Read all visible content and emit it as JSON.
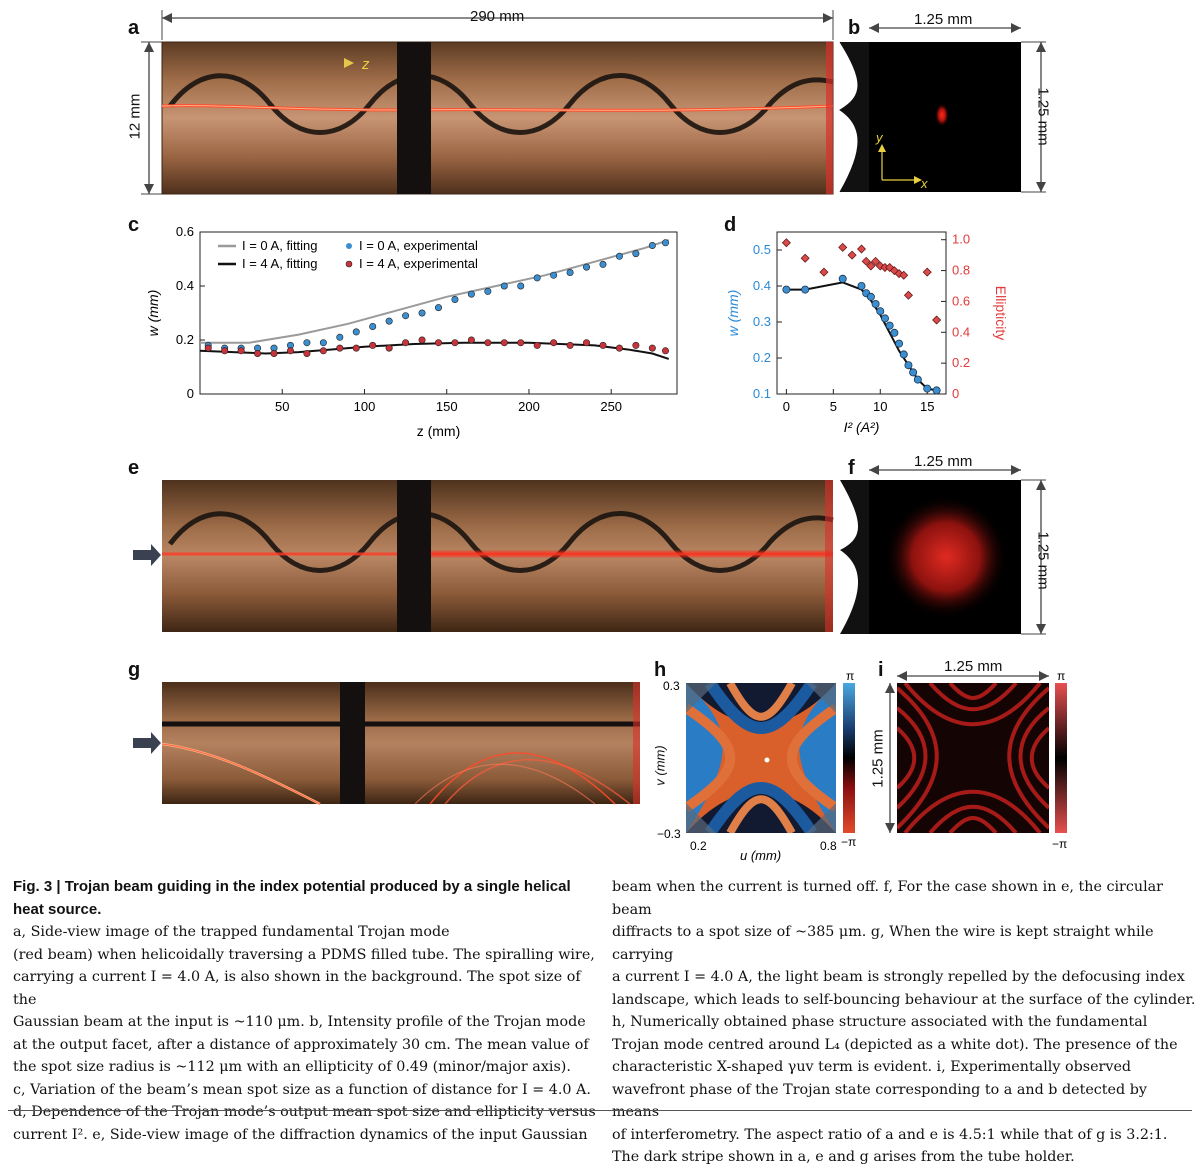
{
  "panels": {
    "a": {
      "label": "a",
      "width_label": "290 mm",
      "height_label": "12 mm",
      "axis": "z"
    },
    "b": {
      "label": "b",
      "width_label": "1.25 mm",
      "height_label": "1.25 mm",
      "axis_x": "x",
      "axis_y": "y"
    },
    "c": {
      "label": "c"
    },
    "d": {
      "label": "d"
    },
    "e": {
      "label": "e"
    },
    "f": {
      "label": "f",
      "width_label": "1.25 mm",
      "height_label": "1.25 mm"
    },
    "g": {
      "label": "g"
    },
    "h": {
      "label": "h",
      "ylabel": "v (mm)",
      "xlabel": "u (mm)",
      "y_top": "0.3",
      "y_bottom": "−0.3",
      "x_left": "0.2",
      "x_right": "0.8",
      "cbar_top": "π",
      "cbar_bottom": "−π"
    },
    "i": {
      "label": "i",
      "width_label": "1.25 mm",
      "height_label": "1.25 mm",
      "cbar_top": "π",
      "cbar_bottom": "−π"
    }
  },
  "chart_data": [
    {
      "type": "scatter",
      "panel": "c",
      "xlabel": "z (mm)",
      "ylabel": "w (mm)",
      "xlim": [
        0,
        290
      ],
      "ylim": [
        0,
        0.6
      ],
      "xticks": [
        "50",
        "100",
        "150",
        "200",
        "250"
      ],
      "yticks": [
        "0",
        "0.2",
        "0.4",
        "0.6"
      ],
      "legend_position": "top-left",
      "legend": [
        "I = 0 A, fitting",
        "I = 4 A, fitting",
        "I = 0 A, experimental",
        "I = 4 A, experimental"
      ],
      "series": [
        {
          "name": "I = 0 A, fitting",
          "style": "line",
          "color": "#9a9a9a",
          "x": [
            0,
            30,
            60,
            90,
            120,
            150,
            180,
            210,
            240,
            270,
            285
          ],
          "y": [
            0.19,
            0.19,
            0.22,
            0.26,
            0.31,
            0.36,
            0.4,
            0.44,
            0.49,
            0.54,
            0.57
          ]
        },
        {
          "name": "I = 4 A, fitting",
          "style": "line",
          "color": "#111111",
          "x": [
            0,
            20,
            40,
            60,
            80,
            100,
            130,
            160,
            200,
            240,
            260,
            275,
            285
          ],
          "y": [
            0.16,
            0.155,
            0.15,
            0.155,
            0.165,
            0.175,
            0.185,
            0.19,
            0.19,
            0.18,
            0.165,
            0.15,
            0.13
          ]
        },
        {
          "name": "I = 0 A, experimental",
          "style": "points",
          "color": "#3b8fd0",
          "x": [
            5,
            15,
            25,
            35,
            45,
            55,
            65,
            75,
            85,
            95,
            105,
            115,
            125,
            135,
            145,
            155,
            165,
            175,
            185,
            195,
            205,
            215,
            225,
            235,
            245,
            255,
            265,
            275,
            283
          ],
          "y": [
            0.18,
            0.17,
            0.17,
            0.17,
            0.17,
            0.18,
            0.19,
            0.19,
            0.21,
            0.23,
            0.25,
            0.27,
            0.29,
            0.3,
            0.32,
            0.35,
            0.37,
            0.38,
            0.4,
            0.4,
            0.43,
            0.44,
            0.45,
            0.47,
            0.48,
            0.51,
            0.52,
            0.55,
            0.56
          ]
        },
        {
          "name": "I = 4 A, experimental",
          "style": "points",
          "color": "#c8343a",
          "x": [
            5,
            15,
            25,
            35,
            45,
            55,
            65,
            75,
            85,
            95,
            105,
            115,
            125,
            135,
            145,
            155,
            165,
            175,
            185,
            195,
            205,
            215,
            225,
            235,
            245,
            255,
            265,
            275,
            283
          ],
          "y": [
            0.17,
            0.16,
            0.16,
            0.15,
            0.15,
            0.16,
            0.15,
            0.16,
            0.17,
            0.17,
            0.18,
            0.17,
            0.19,
            0.2,
            0.19,
            0.19,
            0.2,
            0.19,
            0.19,
            0.19,
            0.18,
            0.19,
            0.18,
            0.19,
            0.18,
            0.17,
            0.18,
            0.17,
            0.16
          ]
        }
      ]
    },
    {
      "type": "scatter",
      "panel": "d",
      "xlabel": "I² (A²)",
      "ylabel": "w (mm)",
      "ylabel_right": "Ellipticity",
      "xlim": [
        -1,
        17
      ],
      "ylim": [
        0.1,
        0.55
      ],
      "ylim_right": [
        0,
        1.05
      ],
      "xticks": [
        "0",
        "5",
        "10",
        "15"
      ],
      "yticks": [
        "0.1",
        "0.2",
        "0.3",
        "0.4",
        "0.5"
      ],
      "yticks_right": [
        "0",
        "0.2",
        "0.4",
        "0.6",
        "0.8",
        "1.0"
      ],
      "colors": {
        "left_axis": "#2a8ad8",
        "right_axis": "#e23b3b"
      },
      "series": [
        {
          "name": "w fit",
          "style": "line",
          "axis": "left",
          "color": "#111111",
          "x": [
            0,
            2,
            4,
            6,
            8,
            9,
            10,
            11,
            12,
            13,
            14,
            15,
            16
          ],
          "y": [
            0.39,
            0.39,
            0.4,
            0.41,
            0.39,
            0.36,
            0.32,
            0.27,
            0.22,
            0.18,
            0.14,
            0.115,
            0.11
          ]
        },
        {
          "name": "w",
          "style": "points",
          "axis": "left",
          "color": "#3b8fd0",
          "x": [
            0,
            2,
            6,
            8,
            8.5,
            9,
            9.5,
            10,
            10.5,
            11,
            11.5,
            12,
            12.5,
            13,
            13.5,
            14,
            15,
            16
          ],
          "y": [
            0.39,
            0.39,
            0.42,
            0.4,
            0.38,
            0.37,
            0.35,
            0.33,
            0.31,
            0.29,
            0.27,
            0.24,
            0.21,
            0.18,
            0.16,
            0.14,
            0.115,
            0.11
          ]
        },
        {
          "name": "Ellipticity",
          "style": "diamonds",
          "axis": "right",
          "color": "#d94a4a",
          "x": [
            0,
            2,
            4,
            6,
            7,
            8,
            8.5,
            9,
            9.5,
            10,
            10.5,
            11,
            11.5,
            12,
            12.5,
            13,
            15,
            16
          ],
          "y": [
            0.98,
            0.88,
            0.79,
            0.95,
            0.9,
            0.94,
            0.86,
            0.83,
            0.86,
            0.83,
            0.82,
            0.82,
            0.8,
            0.78,
            0.77,
            0.64,
            0.79,
            0.48
          ]
        }
      ]
    }
  ],
  "caption": {
    "fig_title": "Fig. 3 | Trojan beam guiding in the index potential produced by a single helical heat source.",
    "col1_lines": [
      "helical heat source. a, Side-view image of the trapped fundamental Trojan mode",
      "(red beam) when helicoidally traversing a PDMS filled tube. The spiralling wire,",
      "carrying a current I = 4.0 A, is also shown in the background. The spot size of the",
      "Gaussian beam at the input is ~110 μm. b, Intensity profile of the Trojan mode",
      "at the output facet, after a distance of approximately 30 cm. The mean value of",
      "the spot size radius is ~112 μm with an ellipticity of 0.49 (minor/major axis).",
      "c, Variation of the beam’s mean spot size as a function of distance for I = 4.0 A.",
      "d, Dependence of the Trojan mode’s output mean spot size and ellipticity versus",
      "current I². e, Side-view image of the diffraction dynamics of the input Gaussian"
    ],
    "col2_lines": [
      "beam when the current is turned off. f, For the case shown in e, the circular beam",
      "diffracts to a spot size of ~385 μm. g, When the wire is kept straight while carrying",
      "a current I = 4.0 A, the light beam is strongly repelled by the defocusing index",
      "landscape, which leads to self-bouncing behaviour at the surface of the cylinder.",
      "h, Numerically obtained phase structure associated with the fundamental",
      "Trojan mode centred around L₄ (depicted as a white dot). The presence of the",
      "characteristic X-shaped γuv term is evident. i, Experimentally observed",
      "wavefront phase of the Trojan state corresponding to a and b detected by means",
      "of interferometry. The aspect ratio of a and e is 4.5:1 while that of g is 3.2:1.",
      "The dark stripe shown in a, e and g arises from the tube holder."
    ]
  }
}
